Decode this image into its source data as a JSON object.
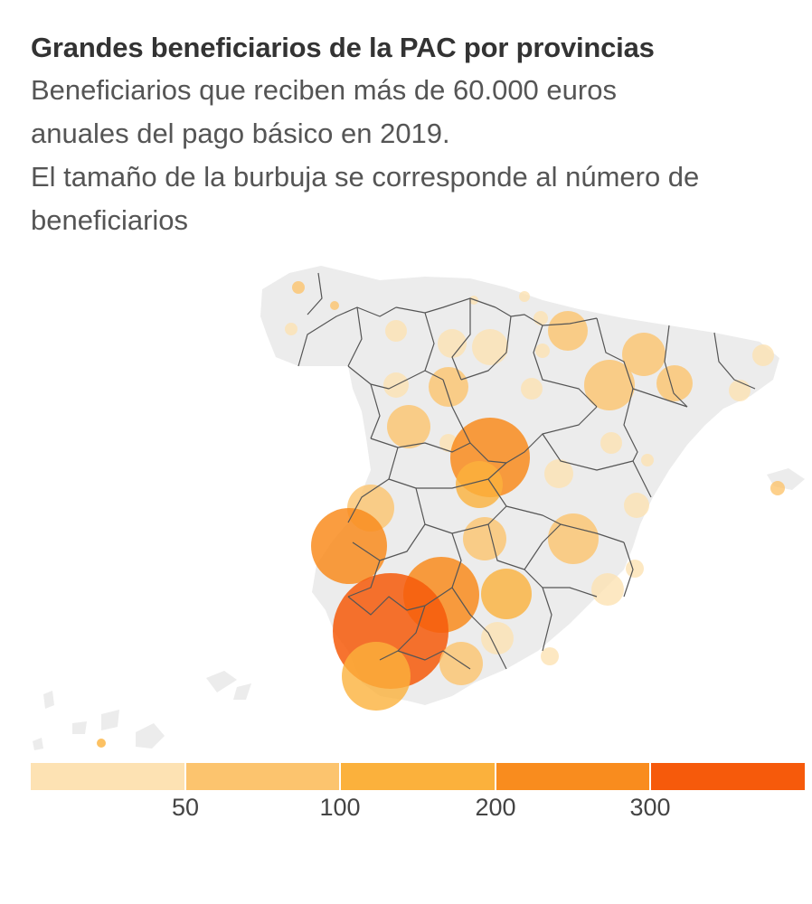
{
  "title": "Grandes beneficiarios de la PAC por provincias",
  "subtitle_lines": [
    "Beneficiarios que reciben más de 60.000 euros",
    "anuales del pago básico en 2019.",
    "El tamaño de la burbuja se corresponde al número de",
    "beneficiarios"
  ],
  "legend": {
    "colors": [
      "#fde2b3",
      "#fcc46e",
      "#fbb13c",
      "#f98c1e",
      "#f65a0b"
    ],
    "ticks": [
      "50",
      "100",
      "200",
      "300"
    ]
  },
  "colors": {
    "land": "#ececec",
    "border": "#555555",
    "title": "#333333",
    "subtitle": "#555555"
  }
}
